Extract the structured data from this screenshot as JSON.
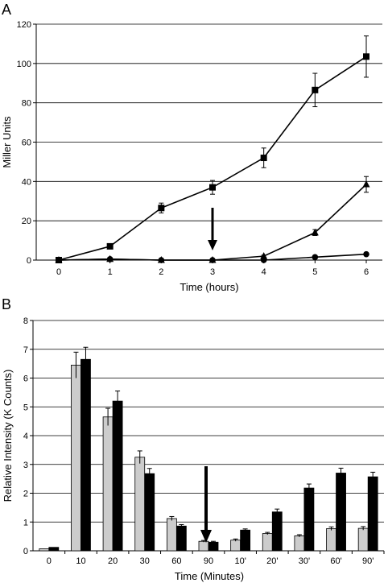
{
  "panels": {
    "a_label": "A",
    "b_label": "B"
  },
  "chart_data": [
    {
      "type": "line",
      "title": "",
      "xlabel": "Time (hours)",
      "ylabel": "Miller Units",
      "x": [
        0,
        1,
        2,
        3,
        4,
        5,
        6
      ],
      "xlim": [
        0,
        6
      ],
      "ylim": [
        0,
        120
      ],
      "yticks": [
        0,
        20,
        40,
        60,
        80,
        100,
        120
      ],
      "grid": "horizontal",
      "series": [
        {
          "marker": "square",
          "values": [
            0,
            7,
            26.5,
            37,
            52,
            86.5,
            103.5
          ],
          "errors": [
            0,
            0.5,
            2.5,
            3.5,
            5,
            8.5,
            10.5
          ]
        },
        {
          "marker": "triangle",
          "values": [
            0,
            0.5,
            0,
            0,
            2,
            14,
            38.5
          ],
          "errors": [
            0,
            0,
            0,
            0,
            0.5,
            1.5,
            4
          ]
        },
        {
          "marker": "circle",
          "values": [
            0,
            0.5,
            0,
            0,
            0,
            1.5,
            3
          ],
          "errors": [
            0,
            0,
            0,
            0,
            0,
            0,
            0
          ]
        }
      ],
      "arrow_at_x": 3
    },
    {
      "type": "bar",
      "title": "",
      "xlabel": "Time (Minutes)",
      "ylabel": "Relative Intensity (K Counts)",
      "categories": [
        "0",
        "10",
        "20",
        "30",
        "60",
        "90",
        "10'",
        "20'",
        "30'",
        "60'",
        "90'"
      ],
      "ylim": [
        0,
        8
      ],
      "yticks": [
        0,
        1,
        2,
        3,
        4,
        5,
        6,
        7,
        8
      ],
      "grid": "horizontal",
      "series": [
        {
          "color": "#cccccc",
          "values": [
            0.07,
            6.45,
            4.65,
            3.25,
            1.12,
            0.33,
            0.37,
            0.6,
            0.52,
            0.77,
            0.78
          ],
          "errors": [
            0,
            0.45,
            0.3,
            0.22,
            0.07,
            0.03,
            0.04,
            0.04,
            0.04,
            0.06,
            0.06
          ]
        },
        {
          "color": "#000000",
          "values": [
            0.12,
            6.65,
            5.2,
            2.68,
            0.86,
            0.3,
            0.72,
            1.35,
            2.18,
            2.7,
            2.57
          ],
          "errors": [
            0,
            0.42,
            0.35,
            0.18,
            0.05,
            0.03,
            0.04,
            0.1,
            0.14,
            0.17,
            0.16
          ]
        }
      ],
      "arrow_at_category": "90"
    }
  ]
}
